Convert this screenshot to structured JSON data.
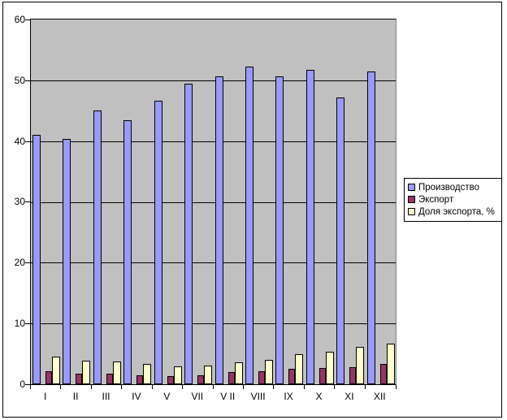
{
  "chart_data": {
    "type": "bar",
    "title": "",
    "categories": [
      "I",
      "II",
      "III",
      "IV",
      "V",
      "VII",
      "V II",
      "VIII",
      "IX",
      "X",
      "XI",
      "XII"
    ],
    "series": [
      {
        "name": "Производство",
        "color": "#9999FF",
        "values": [
          41.0,
          40.4,
          45.1,
          43.4,
          46.6,
          49.4,
          50.7,
          52.3,
          50.7,
          51.7,
          47.2,
          51.4
        ]
      },
      {
        "name": "Экспорт",
        "color": "#993366",
        "values": [
          2.1,
          1.7,
          1.8,
          1.5,
          1.3,
          1.5,
          2.0,
          2.2,
          2.5,
          2.7,
          2.8,
          3.4
        ]
      },
      {
        "name": "Доля экспорта, %",
        "color": "#FFFFCC",
        "values": [
          4.6,
          3.9,
          3.8,
          3.4,
          3.0,
          3.1,
          3.6,
          4.0,
          5.0,
          5.3,
          6.2,
          6.7
        ]
      }
    ],
    "xlabel": "",
    "ylabel": "",
    "ylim": [
      0,
      60
    ],
    "ytick_step": 10,
    "yticks": [
      "0",
      "10",
      "20",
      "30",
      "40",
      "50",
      "60"
    ],
    "grid": "horizontal",
    "legend_position": "right",
    "plot_bg": "#C0C0C0",
    "chart_bg": "#FFFFFF",
    "gridline_color": "#000000"
  }
}
